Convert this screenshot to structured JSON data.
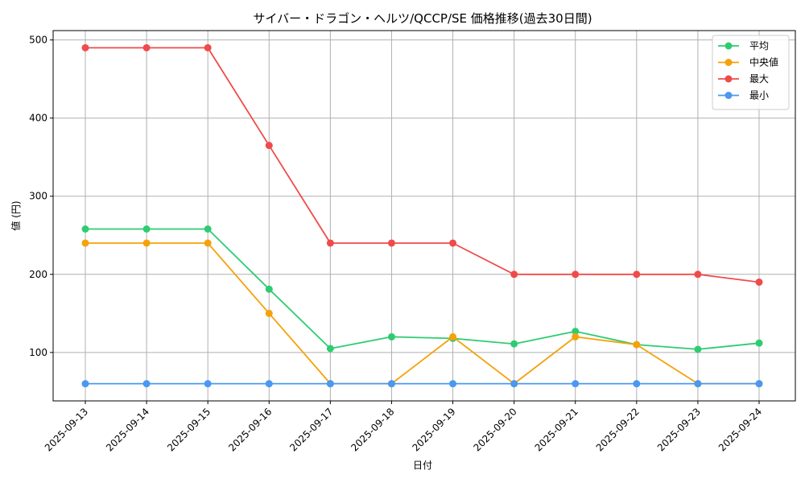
{
  "chart_data": {
    "type": "line",
    "title": "サイバー・ドラゴン・ヘルツ/QCCP/SE 価格推移(過去30日間)",
    "xlabel": "日付",
    "ylabel": "値 (円)",
    "categories": [
      "2025-09-13",
      "2025-09-14",
      "2025-09-15",
      "2025-09-16",
      "2025-09-17",
      "2025-09-18",
      "2025-09-19",
      "2025-09-20",
      "2025-09-21",
      "2025-09-22",
      "2025-09-23",
      "2025-09-24"
    ],
    "ylim": [
      38,
      512
    ],
    "yticks": [
      100,
      200,
      300,
      400,
      500
    ],
    "grid": true,
    "legend_position": "top-right",
    "series": [
      {
        "name": "平均",
        "color": "#2ecc71",
        "values": [
          258,
          258,
          258,
          181,
          105,
          120,
          118,
          111,
          127,
          110,
          104,
          112
        ]
      },
      {
        "name": "中央値",
        "color": "#f5a20a",
        "values": [
          240,
          240,
          240,
          150,
          60,
          60,
          120,
          60,
          120,
          110,
          60,
          60
        ]
      },
      {
        "name": "最大",
        "color": "#ef4b4b",
        "values": [
          490,
          490,
          490,
          365,
          240,
          240,
          240,
          200,
          200,
          200,
          200,
          190
        ]
      },
      {
        "name": "最小",
        "color": "#4a98f0",
        "values": [
          60,
          60,
          60,
          60,
          60,
          60,
          60,
          60,
          60,
          60,
          60,
          60
        ]
      }
    ]
  }
}
